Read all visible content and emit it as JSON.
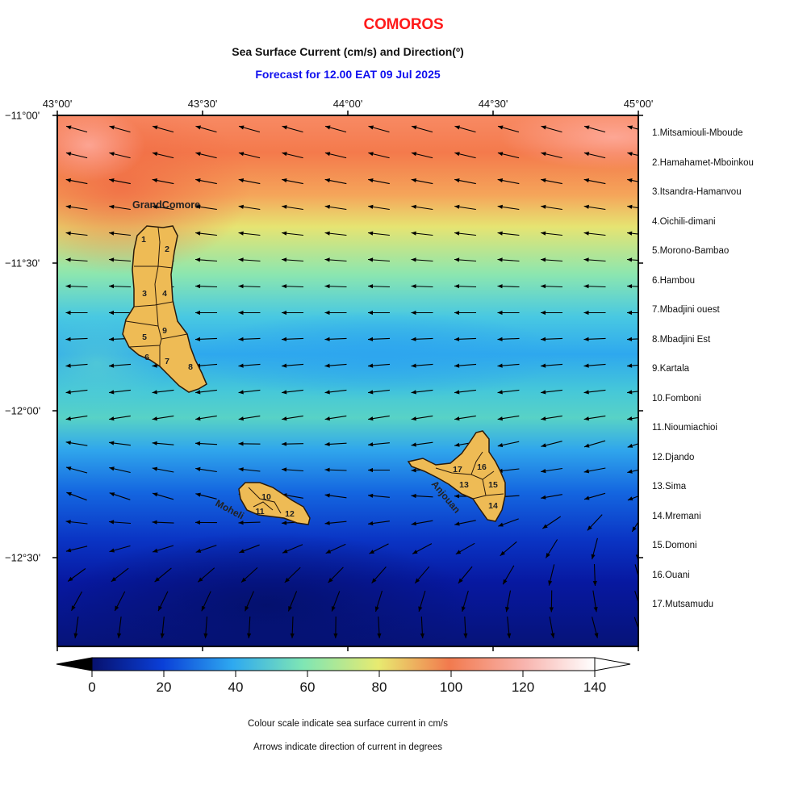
{
  "header": {
    "title": "COMOROS",
    "subtitle": "Sea Surface Current (cm/s) and Direction(º)",
    "forecast": "Forecast for  12.00 EAT 09 Jul 2025"
  },
  "axes": {
    "lon_labels": [
      "43°00'",
      "43°30'",
      "44°00'",
      "44°30'",
      "45°00'"
    ],
    "lat_labels": [
      "−11°00'",
      "−11°30'",
      "−12°00'",
      "−12°30'"
    ]
  },
  "islands": {
    "grand_comore": "GrandComore",
    "moheli": "Moheli",
    "anjouan": "Anjouan",
    "numbers": [
      "1",
      "2",
      "3",
      "4",
      "5",
      "6",
      "7",
      "8",
      "9",
      "10",
      "11",
      "12",
      "13",
      "14",
      "15",
      "16",
      "17"
    ]
  },
  "legend": [
    "1.Mitsamiouli-Mboude",
    "2.Hamahamet-Mboinkou",
    "3.Itsandra-Hamanvou",
    "4.Oichili-dimani",
    "5.Morono-Bambao",
    "6.Hambou",
    "7.Mbadjini ouest",
    "8.Mbadjini Est",
    "9.Kartala",
    "10.Fomboni",
    "11.Nioumiachioi",
    "12.Djando",
    "13.Sima",
    "14.Mremani",
    "15.Domoni",
    "16.Ouani",
    "17.Mutsamudu"
  ],
  "colorbar": {
    "ticks": [
      "0",
      "20",
      "40",
      "60",
      "80",
      "100",
      "120",
      "140"
    ],
    "units": "cm/s",
    "colors": [
      "#07116e",
      "#0a3fd8",
      "#2ea9f0",
      "#7fe6b4",
      "#e8ea70",
      "#f27a4e",
      "#f8b4ae",
      "#ffffff"
    ]
  },
  "notes": {
    "line1": "Colour scale indicate sea surface current in cm/s",
    "line2": "Arrows indicate direction of current in degrees"
  },
  "colors": {
    "title": "#ff1a1a",
    "forecast": "#1010ee",
    "land": "#eebb55"
  }
}
